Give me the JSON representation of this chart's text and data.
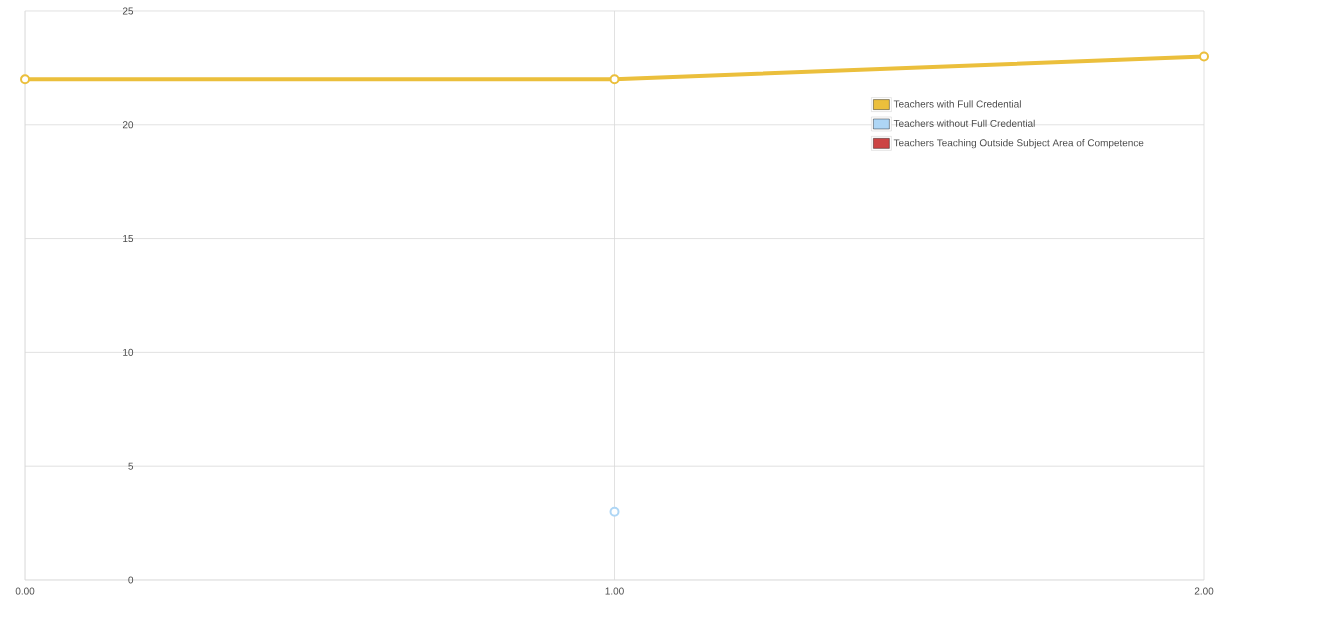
{
  "chart_data": {
    "type": "line",
    "x": [
      0,
      1,
      2
    ],
    "series": [
      {
        "name": "Teachers with Full Credential",
        "color": "#ebbf3c",
        "values": [
          22,
          22,
          23
        ]
      },
      {
        "name": "Teachers without Full Credential",
        "color": "#aed6f5",
        "values": [
          null,
          3,
          null
        ]
      },
      {
        "name": "Teachers Teaching Outside Subject Area of Competence",
        "color": "#cc4444",
        "values": [
          null,
          null,
          null
        ]
      }
    ],
    "xlim": [
      0,
      2
    ],
    "xticks": [
      {
        "value": 0,
        "label": "0.00"
      },
      {
        "value": 1,
        "label": "1.00"
      },
      {
        "value": 2,
        "label": "2.00"
      }
    ],
    "ylim": [
      0,
      25
    ],
    "yticks": [
      0,
      5,
      10,
      15,
      20,
      25
    ],
    "grid": true,
    "legend": "top right",
    "marker": "circle",
    "line_style": "solid"
  }
}
